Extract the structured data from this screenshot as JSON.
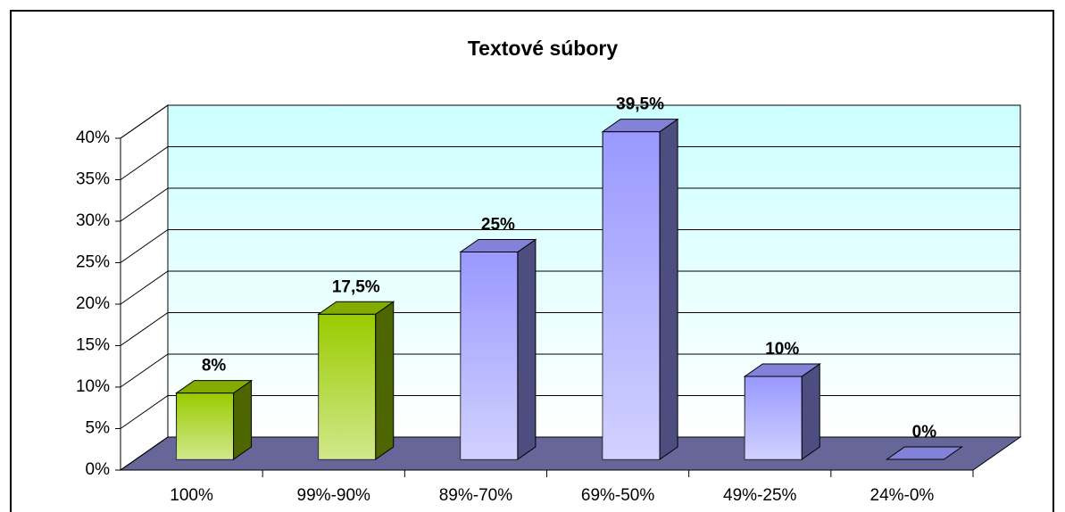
{
  "chart_data": {
    "type": "bar3d",
    "title": "Textové súbory",
    "categories": [
      "100%",
      "99%-90%",
      "89%-70%",
      "69%-50%",
      "49%-25%",
      "24%-0%"
    ],
    "values": [
      8,
      17.5,
      25,
      39.5,
      10,
      0
    ],
    "value_labels": [
      "8%",
      "17,5%",
      "25%",
      "39,5%",
      "10%",
      "0%"
    ],
    "colors": [
      "#99cc00",
      "#99cc00",
      "#9999ff",
      "#9999ff",
      "#9999ff",
      "#9999ff"
    ],
    "ylim": [
      0,
      40
    ],
    "yticks": [
      {
        "value": 0,
        "label": "0%"
      },
      {
        "value": 5,
        "label": "5%"
      },
      {
        "value": 10,
        "label": "10%"
      },
      {
        "value": 15,
        "label": "15%"
      },
      {
        "value": 20,
        "label": "20%"
      },
      {
        "value": 25,
        "label": "25%"
      },
      {
        "value": 30,
        "label": "30%"
      },
      {
        "value": 35,
        "label": "35%"
      },
      {
        "value": 40,
        "label": "40%"
      }
    ],
    "grid": true
  }
}
